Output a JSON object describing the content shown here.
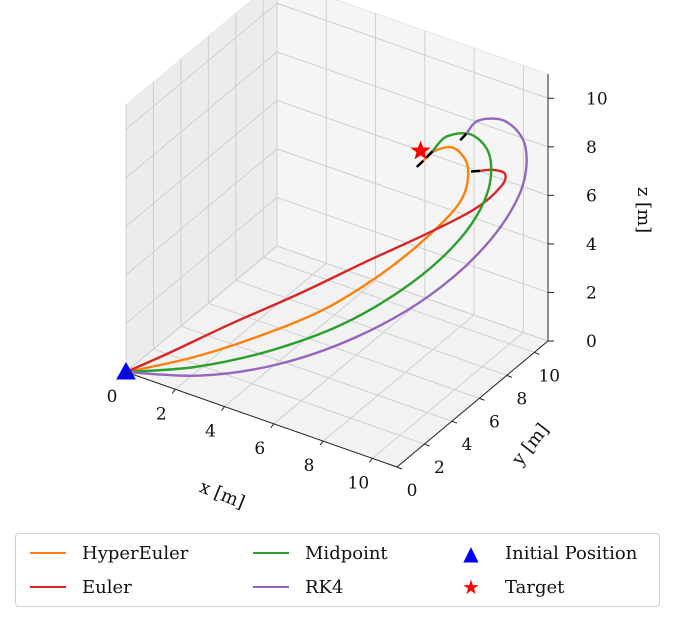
{
  "chart_data": {
    "type": "line",
    "projection": "3d",
    "title": "",
    "xlabel": "x [m]",
    "ylabel": "y [m]",
    "zlabel": "z [m]",
    "xlim": [
      0,
      11
    ],
    "ylim": [
      0,
      11
    ],
    "zlim": [
      0,
      11
    ],
    "xticks": [
      "0",
      "2",
      "4",
      "6",
      "8",
      "10"
    ],
    "yticks": [
      "0",
      "2",
      "4",
      "6",
      "8",
      "10"
    ],
    "zticks": [
      "0",
      "2",
      "4",
      "6",
      "8",
      "10"
    ],
    "grid": true,
    "legend_position": "bottom",
    "series": [
      {
        "name": "HyperEuler",
        "color": "#ff7f0e",
        "points": [
          [
            0,
            0,
            0
          ],
          [
            2,
            1,
            0.8
          ],
          [
            4,
            2.2,
            1.8
          ],
          [
            6,
            3.6,
            3
          ],
          [
            7.6,
            5,
            4.4
          ],
          [
            8.8,
            6.3,
            5.8
          ],
          [
            9.5,
            7.4,
            7
          ],
          [
            9.3,
            8.2,
            7.9
          ],
          [
            8.5,
            8.6,
            8.2
          ],
          [
            7.8,
            8.4,
            7.9
          ],
          [
            7.5,
            8.2,
            7.5
          ]
        ]
      },
      {
        "name": "Euler",
        "color": "#d62728",
        "points": [
          [
            0,
            0,
            0
          ],
          [
            1.6,
            0.4,
            1.2
          ],
          [
            3.5,
            1.3,
            2.6
          ],
          [
            5.6,
            2.6,
            4
          ],
          [
            7.6,
            4,
            5.4
          ],
          [
            9.2,
            5.5,
            6.4
          ],
          [
            10.3,
            7,
            7.1
          ],
          [
            10.6,
            8.3,
            7.5
          ],
          [
            10.2,
            9.3,
            7.4
          ],
          [
            9.4,
            9.9,
            7
          ],
          [
            8.8,
            10,
            6.7
          ]
        ]
      },
      {
        "name": "Midpoint",
        "color": "#2ca02c",
        "points": [
          [
            0,
            0,
            0
          ],
          [
            2.3,
            0.9,
            0.6
          ],
          [
            4.6,
            2.1,
            1.5
          ],
          [
            6.8,
            3.6,
            2.7
          ],
          [
            8.6,
            5.3,
            4.2
          ],
          [
            9.8,
            6.8,
            5.8
          ],
          [
            10.2,
            8,
            7.2
          ],
          [
            9.8,
            8.9,
            8.2
          ],
          [
            8.9,
            9.2,
            8.6
          ],
          [
            8,
            9,
            8.3
          ],
          [
            7.6,
            8.7,
            7.7
          ]
        ]
      },
      {
        "name": "RK4",
        "color": "#9467bd",
        "points": [
          [
            0,
            0,
            0
          ],
          [
            2.6,
            0.8,
            0.4
          ],
          [
            5.1,
            2,
            1.2
          ],
          [
            7.4,
            3.6,
            2.4
          ],
          [
            9.3,
            5.4,
            3.9
          ],
          [
            10.6,
            7.2,
            5.6
          ],
          [
            11.1,
            8.8,
            7.2
          ],
          [
            10.7,
            9.9,
            8.4
          ],
          [
            9.7,
            10.3,
            8.9
          ],
          [
            8.7,
            10.1,
            8.7
          ],
          [
            8.3,
            9.9,
            8.1
          ]
        ]
      },
      {
        "name": "Initial Position",
        "color": "#0000ff",
        "marker": "triangle",
        "points": [
          [
            0,
            0,
            0
          ]
        ]
      },
      {
        "name": "Target",
        "color": "#ff0000",
        "marker": "star",
        "points": [
          [
            7.5,
            8,
            8
          ]
        ]
      }
    ]
  },
  "legend": {
    "items": [
      {
        "label": "HyperEuler",
        "color": "#ff7f0e",
        "kind": "line"
      },
      {
        "label": "Euler",
        "color": "#d62728",
        "kind": "line"
      },
      {
        "label": "Midpoint",
        "color": "#2ca02c",
        "kind": "line"
      },
      {
        "label": "RK4",
        "color": "#9467bd",
        "kind": "line"
      },
      {
        "label": "Initial Position",
        "color": "#0000ff",
        "kind": "triangle"
      },
      {
        "label": "Target",
        "color": "#ff0000",
        "kind": "star"
      }
    ]
  }
}
